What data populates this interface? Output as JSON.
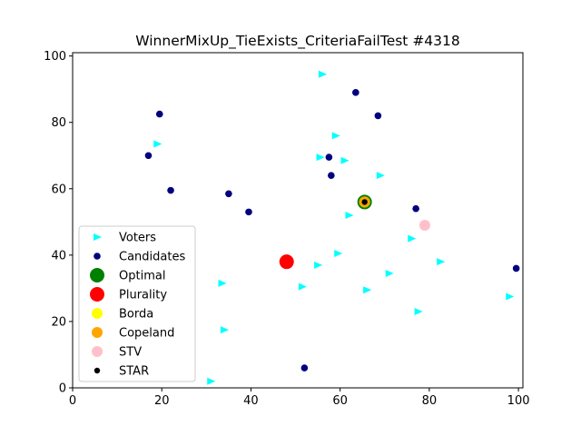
{
  "chart_data": {
    "type": "scatter",
    "title": "WinnerMixUp_TieExists_CriteriaFailTest #4318",
    "xlabel": "",
    "ylabel": "",
    "xlim": [
      0,
      101
    ],
    "ylim": [
      0,
      101
    ],
    "xticks": [
      0,
      20,
      40,
      60,
      80,
      100
    ],
    "yticks": [
      0,
      20,
      40,
      60,
      80,
      100
    ],
    "grid": false,
    "legend_position": "lower-left",
    "series": [
      {
        "name": "Voters",
        "marker": "triangle-right",
        "color": "#00ffff",
        "points": [
          [
            56,
            94.5
          ],
          [
            19,
            73.5
          ],
          [
            59,
            76
          ],
          [
            55.5,
            69.5
          ],
          [
            61,
            68.5
          ],
          [
            69,
            64
          ],
          [
            62,
            52
          ],
          [
            76,
            45
          ],
          [
            59.5,
            40.5
          ],
          [
            55,
            37
          ],
          [
            71,
            34.5
          ],
          [
            82.5,
            38
          ],
          [
            33.5,
            31.5
          ],
          [
            51.5,
            30.5
          ],
          [
            66,
            29.5
          ],
          [
            98,
            27.5
          ],
          [
            77.5,
            23
          ],
          [
            34,
            17.5
          ],
          [
            31,
            2
          ]
        ]
      },
      {
        "name": "Candidates",
        "marker": "circle",
        "color": "#000080",
        "points": [
          [
            63.5,
            89
          ],
          [
            68.5,
            82
          ],
          [
            19.5,
            82.5
          ],
          [
            17,
            70
          ],
          [
            57.5,
            69.5
          ],
          [
            58,
            64
          ],
          [
            22,
            59.5
          ],
          [
            35,
            58.5
          ],
          [
            39.5,
            53
          ],
          [
            65.5,
            56
          ],
          [
            77,
            54
          ],
          [
            99.5,
            36
          ],
          [
            52,
            6
          ]
        ]
      },
      {
        "name": "Optimal",
        "marker": "circle-large",
        "color": "#008000",
        "points": [
          [
            65.5,
            56
          ]
        ]
      },
      {
        "name": "Plurality",
        "marker": "circle-large",
        "color": "#ff0000",
        "points": [
          [
            48,
            38
          ]
        ]
      },
      {
        "name": "Borda",
        "marker": "circle-medium",
        "color": "#ffff00",
        "points": [
          [
            65.5,
            56
          ]
        ]
      },
      {
        "name": "Copeland",
        "marker": "circle-medium",
        "color": "#ffa500",
        "points": [
          [
            65.5,
            56
          ]
        ]
      },
      {
        "name": "STV",
        "marker": "circle-medium",
        "color": "#ffc0cb",
        "points": [
          [
            79,
            49
          ]
        ]
      },
      {
        "name": "STAR",
        "marker": "circle-small",
        "color": "#000000",
        "points": [
          [
            65.5,
            56
          ]
        ]
      }
    ]
  }
}
